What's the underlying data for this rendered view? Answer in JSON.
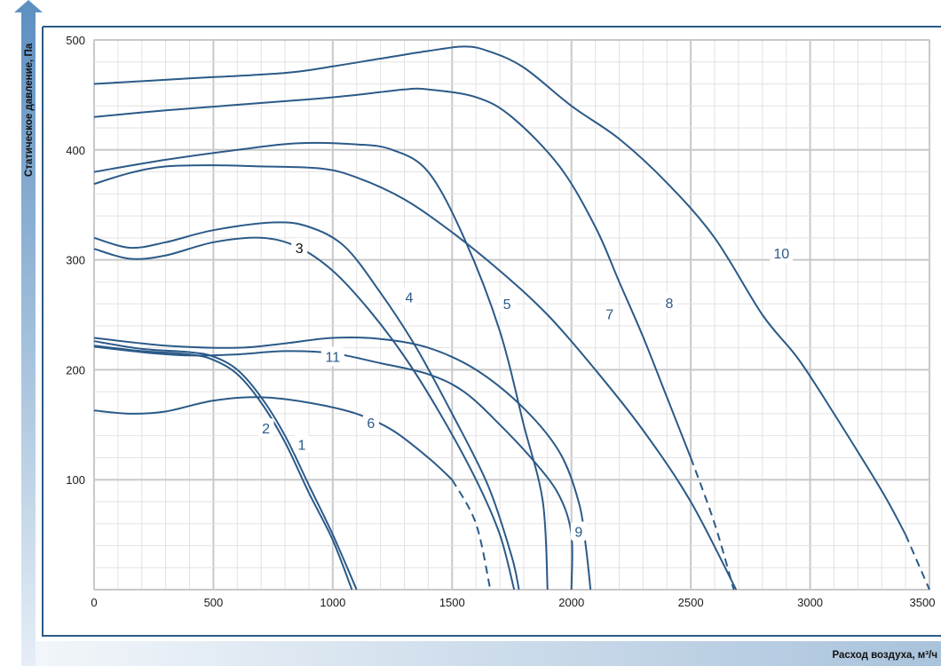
{
  "chart_data": {
    "type": "line",
    "title": "",
    "xlabel": "Расход воздуха, м³/ч",
    "ylabel": "Статическое давление, Па",
    "xlim": [
      0,
      3500
    ],
    "ylim": [
      0,
      500
    ],
    "x_ticks": [
      0,
      500,
      1000,
      1500,
      2000,
      2500,
      3000,
      3500
    ],
    "y_ticks": [
      100,
      200,
      300,
      400,
      500
    ],
    "grid": true,
    "legend": "none",
    "colors": {
      "curve": "#2b5a88",
      "label_black": "#111111",
      "axis_arrow": "#5c8fc0",
      "frame": "#2b5a88",
      "grid_major": "#c8c8c8",
      "grid_minor": "#e2e2e2"
    },
    "series": [
      {
        "name": "1",
        "label_at": [
          870,
          132
        ],
        "points": [
          [
            0,
            226
          ],
          [
            200,
            219
          ],
          [
            400,
            216
          ],
          [
            500,
            212
          ],
          [
            600,
            200
          ],
          [
            700,
            175
          ],
          [
            800,
            140
          ],
          [
            900,
            95
          ],
          [
            1000,
            50
          ],
          [
            1100,
            0
          ]
        ]
      },
      {
        "name": "2",
        "label_at": [
          720,
          147
        ],
        "points": [
          [
            0,
            222
          ],
          [
            200,
            217
          ],
          [
            400,
            214
          ],
          [
            500,
            209
          ],
          [
            600,
            196
          ],
          [
            700,
            170
          ],
          [
            800,
            134
          ],
          [
            900,
            88
          ],
          [
            1000,
            45
          ],
          [
            1080,
            0
          ]
        ]
      },
      {
        "name": "3",
        "label_color": "#111111",
        "label_at": [
          860,
          311
        ],
        "points": [
          [
            0,
            310
          ],
          [
            150,
            301
          ],
          [
            300,
            304
          ],
          [
            500,
            316
          ],
          [
            700,
            320
          ],
          [
            850,
            312
          ],
          [
            1000,
            290
          ],
          [
            1150,
            255
          ],
          [
            1300,
            212
          ],
          [
            1450,
            160
          ],
          [
            1600,
            100
          ],
          [
            1700,
            50
          ],
          [
            1760,
            0
          ]
        ]
      },
      {
        "name": "4",
        "label_at": [
          1320,
          266
        ],
        "points": [
          [
            0,
            320
          ],
          [
            150,
            311
          ],
          [
            300,
            316
          ],
          [
            500,
            327
          ],
          [
            750,
            334
          ],
          [
            900,
            330
          ],
          [
            1050,
            312
          ],
          [
            1200,
            270
          ],
          [
            1350,
            220
          ],
          [
            1500,
            160
          ],
          [
            1650,
            95
          ],
          [
            1750,
            30
          ],
          [
            1780,
            0
          ]
        ]
      },
      {
        "name": "5",
        "label_at": [
          1730,
          260
        ],
        "points": [
          [
            0,
            380
          ],
          [
            300,
            391
          ],
          [
            600,
            400
          ],
          [
            850,
            406
          ],
          [
            1100,
            405
          ],
          [
            1250,
            400
          ],
          [
            1400,
            380
          ],
          [
            1550,
            320
          ],
          [
            1700,
            235
          ],
          [
            1800,
            150
          ],
          [
            1880,
            80
          ],
          [
            1900,
            0
          ]
        ]
      },
      {
        "name": "6",
        "label_at": [
          1160,
          152
        ],
        "dash_from": 1500,
        "points": [
          [
            0,
            163
          ],
          [
            150,
            160
          ],
          [
            300,
            162
          ],
          [
            500,
            172
          ],
          [
            700,
            175
          ],
          [
            900,
            170
          ],
          [
            1100,
            160
          ],
          [
            1250,
            145
          ],
          [
            1400,
            120
          ],
          [
            1500,
            100
          ],
          [
            1600,
            60
          ],
          [
            1660,
            0
          ]
        ]
      },
      {
        "name": "7",
        "label_at": [
          2160,
          251
        ],
        "points": [
          [
            0,
            369
          ],
          [
            150,
            379
          ],
          [
            300,
            385
          ],
          [
            500,
            386
          ],
          [
            700,
            385
          ],
          [
            950,
            383
          ],
          [
            1100,
            375
          ],
          [
            1300,
            355
          ],
          [
            1500,
            325
          ],
          [
            1700,
            290
          ],
          [
            1900,
            250
          ],
          [
            2100,
            200
          ],
          [
            2300,
            145
          ],
          [
            2500,
            80
          ],
          [
            2690,
            0
          ]
        ]
      },
      {
        "name": "8",
        "label_at": [
          2410,
          261
        ],
        "dash_from": 2500,
        "points": [
          [
            0,
            430
          ],
          [
            300,
            436
          ],
          [
            600,
            441
          ],
          [
            900,
            446
          ],
          [
            1100,
            450
          ],
          [
            1300,
            455
          ],
          [
            1400,
            455
          ],
          [
            1600,
            448
          ],
          [
            1750,
            430
          ],
          [
            1950,
            385
          ],
          [
            2100,
            330
          ],
          [
            2200,
            280
          ],
          [
            2300,
            230
          ],
          [
            2400,
            175
          ],
          [
            2500,
            120
          ],
          [
            2600,
            60
          ],
          [
            2680,
            0
          ]
        ]
      },
      {
        "name": "9",
        "label_at": [
          2030,
          53
        ],
        "points": [
          [
            0,
            229
          ],
          [
            300,
            222
          ],
          [
            600,
            220
          ],
          [
            800,
            224
          ],
          [
            1000,
            229
          ],
          [
            1200,
            228
          ],
          [
            1400,
            220
          ],
          [
            1600,
            200
          ],
          [
            1800,
            165
          ],
          [
            1950,
            125
          ],
          [
            2030,
            80
          ],
          [
            2060,
            40
          ],
          [
            2080,
            0
          ]
        ]
      },
      {
        "name": "10",
        "label_at": [
          2880,
          306
        ],
        "dash_from": 3400,
        "points": [
          [
            0,
            460
          ],
          [
            400,
            465
          ],
          [
            800,
            470
          ],
          [
            1000,
            476
          ],
          [
            1200,
            483
          ],
          [
            1400,
            490
          ],
          [
            1550,
            494
          ],
          [
            1650,
            490
          ],
          [
            1800,
            475
          ],
          [
            2000,
            440
          ],
          [
            2200,
            410
          ],
          [
            2400,
            370
          ],
          [
            2600,
            320
          ],
          [
            2800,
            250
          ],
          [
            2950,
            210
          ],
          [
            3100,
            160
          ],
          [
            3300,
            90
          ],
          [
            3400,
            50
          ],
          [
            3500,
            0
          ]
        ]
      },
      {
        "name": "11",
        "label_at": [
          1000,
          212
        ],
        "points": [
          [
            0,
            221
          ],
          [
            200,
            216
          ],
          [
            400,
            213
          ],
          [
            600,
            214
          ],
          [
            800,
            217
          ],
          [
            1000,
            215
          ],
          [
            1200,
            206
          ],
          [
            1400,
            196
          ],
          [
            1550,
            180
          ],
          [
            1700,
            150
          ],
          [
            1850,
            115
          ],
          [
            1950,
            85
          ],
          [
            2000,
            50
          ],
          [
            2000,
            0
          ]
        ]
      }
    ]
  }
}
